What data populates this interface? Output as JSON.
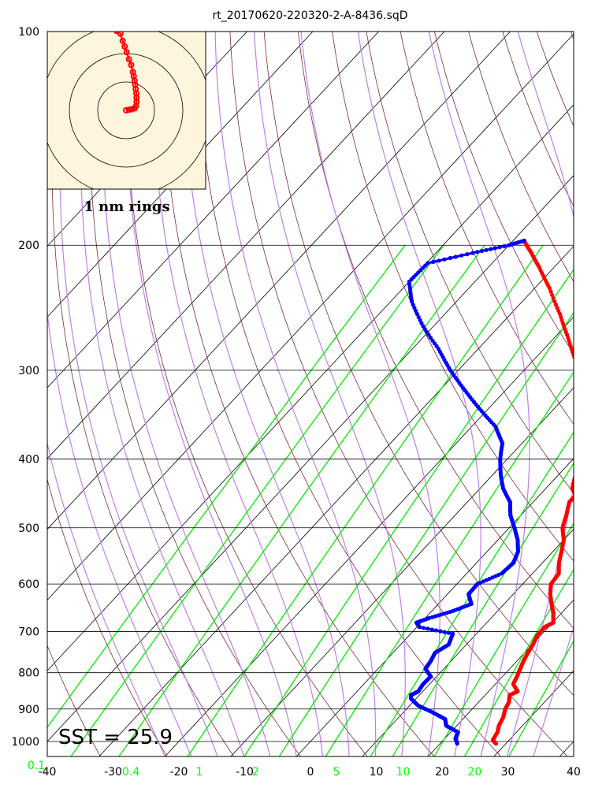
{
  "title": "rt_20170620-220320-2-A-8436.sqD",
  "sst_label": "SST = 25.9",
  "hodograph_label": "1 nm rings",
  "chart_data": {
    "type": "skew-t",
    "title": "rt_20170620-220320-2-A-8436.sqD",
    "y_scale": "log",
    "ylim": [
      1000,
      100
    ],
    "xlim": [
      -40,
      40
    ],
    "pressure_ticks": [
      100,
      200,
      300,
      400,
      500,
      600,
      700,
      800,
      900,
      1000
    ],
    "temperature_ticks": [
      -40,
      -30,
      -20,
      -10,
      0,
      10,
      20,
      30,
      40
    ],
    "mixing_ratio_ticks": [
      {
        "label": "0.1",
        "value": 0.1
      },
      {
        "label": "0.4",
        "value": 0.4
      },
      {
        "label": "1",
        "value": 1
      },
      {
        "label": "2",
        "value": 2
      },
      {
        "label": "5",
        "value": 5
      },
      {
        "label": "10",
        "value": 10
      },
      {
        "label": "20",
        "value": 20
      }
    ],
    "sst": 25.9,
    "series": [
      {
        "color": "#ff0000",
        "role": "temperature",
        "points": [
          [
            1007,
            28.5
          ],
          [
            995,
            27.5
          ],
          [
            970,
            27.1
          ],
          [
            950,
            26.4
          ],
          [
            925,
            25.9
          ],
          [
            900,
            25.0
          ],
          [
            880,
            24.6
          ],
          [
            860,
            23.7
          ],
          [
            850,
            24.4
          ],
          [
            830,
            22.7
          ],
          [
            810,
            22.2
          ],
          [
            790,
            21.6
          ],
          [
            770,
            21.0
          ],
          [
            750,
            20.5
          ],
          [
            730,
            20.1
          ],
          [
            710,
            19.5
          ],
          [
            690,
            19.4
          ],
          [
            680,
            20.1
          ],
          [
            660,
            18.8
          ],
          [
            640,
            17.2
          ],
          [
            620,
            15.6
          ],
          [
            600,
            14.3
          ],
          [
            580,
            14.0
          ],
          [
            560,
            12.5
          ],
          [
            540,
            11.3
          ],
          [
            520,
            10.0
          ],
          [
            500,
            8.1
          ],
          [
            480,
            6.9
          ],
          [
            460,
            5.5
          ],
          [
            450,
            5.5
          ],
          [
            440,
            4.0
          ],
          [
            420,
            2.5
          ],
          [
            400,
            1.6
          ],
          [
            385,
            0.9
          ],
          [
            370,
            -1.1
          ],
          [
            350,
            -3.6
          ],
          [
            330,
            -6.5
          ],
          [
            310,
            -10.0
          ],
          [
            290,
            -13.7
          ],
          [
            270,
            -17.9
          ],
          [
            250,
            -22.5
          ],
          [
            230,
            -27.7
          ],
          [
            215,
            -32.2
          ],
          [
            205,
            -35.5
          ],
          [
            198,
            -38.0
          ]
        ]
      },
      {
        "color": "#0000ff",
        "role": "dewpoint",
        "points": [
          [
            1007,
            22.6
          ],
          [
            990,
            21.6
          ],
          [
            970,
            21.1
          ],
          [
            950,
            18.4
          ],
          [
            930,
            17.3
          ],
          [
            910,
            14.5
          ],
          [
            890,
            11.3
          ],
          [
            870,
            9.2
          ],
          [
            860,
            8.7
          ],
          [
            850,
            9.3
          ],
          [
            830,
            9.0
          ],
          [
            810,
            9.1
          ],
          [
            790,
            7.2
          ],
          [
            770,
            6.9
          ],
          [
            750,
            6.4
          ],
          [
            730,
            7.3
          ],
          [
            705,
            6.4
          ],
          [
            690,
            0.4
          ],
          [
            680,
            -0.7
          ],
          [
            670,
            0.6
          ],
          [
            655,
            3.2
          ],
          [
            640,
            5.0
          ],
          [
            620,
            3.2
          ],
          [
            600,
            3.1
          ],
          [
            580,
            5.3
          ],
          [
            560,
            5.6
          ],
          [
            540,
            4.7
          ],
          [
            520,
            3.0
          ],
          [
            500,
            0.8
          ],
          [
            480,
            -1.6
          ],
          [
            460,
            -3.5
          ],
          [
            440,
            -6.5
          ],
          [
            420,
            -8.9
          ],
          [
            400,
            -11.1
          ],
          [
            380,
            -13.0
          ],
          [
            360,
            -16.4
          ],
          [
            340,
            -21.3
          ],
          [
            320,
            -26.2
          ],
          [
            300,
            -31.2
          ],
          [
            280,
            -36.0
          ],
          [
            260,
            -41.6
          ],
          [
            240,
            -46.8
          ],
          [
            225,
            -50.0
          ],
          [
            212,
            -49.8
          ],
          [
            205,
            -44.4
          ],
          [
            200,
            -40.0
          ],
          [
            197,
            -38.3
          ]
        ]
      }
    ],
    "hodograph": {
      "rings_nm": [
        1,
        2,
        3
      ],
      "track": [
        [
          0,
          0
        ],
        [
          0.1,
          0.02
        ],
        [
          0.2,
          0.04
        ],
        [
          0.3,
          0.07
        ],
        [
          0.35,
          0.15
        ],
        [
          0.37,
          0.3
        ],
        [
          0.37,
          0.45
        ],
        [
          0.36,
          0.6
        ],
        [
          0.34,
          0.75
        ],
        [
          0.32,
          0.9
        ],
        [
          0.3,
          1.05
        ],
        [
          0.27,
          1.2
        ],
        [
          0.24,
          1.35
        ],
        [
          0.18,
          1.6
        ],
        [
          0.1,
          1.8
        ],
        [
          0.02,
          2.05
        ],
        [
          -0.05,
          2.25
        ],
        [
          -0.12,
          2.45
        ],
        [
          -0.2,
          2.7
        ],
        [
          -0.28,
          2.82
        ],
        [
          -0.34,
          2.8
        ]
      ]
    }
  }
}
